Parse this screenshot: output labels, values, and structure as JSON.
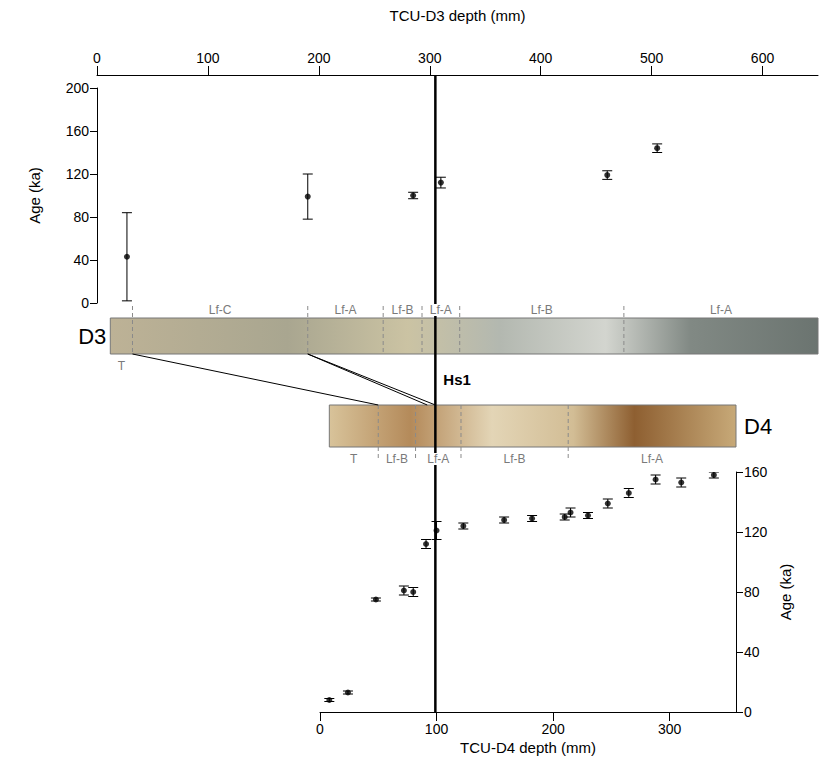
{
  "chart_data": [
    {
      "type": "scatter",
      "x_label": "TCU-D3 depth (mm)",
      "y_label": "Age (ka)",
      "xlim": [
        0,
        650
      ],
      "xticks": [
        0,
        100,
        200,
        300,
        400,
        500,
        600
      ],
      "ylim": [
        0,
        200
      ],
      "yticks": [
        0,
        40,
        80,
        120,
        160,
        200
      ],
      "x": [
        27,
        190,
        285,
        310,
        460,
        505
      ],
      "values": [
        43,
        99,
        100,
        112,
        119,
        144
      ],
      "errors": [
        41,
        21,
        3,
        5,
        4,
        4
      ],
      "color": "#000000",
      "marker": "circle"
    },
    {
      "type": "scatter",
      "x_label": "TCU-D4 depth (mm)",
      "y_label": "Age (ka)",
      "xlim": [
        0,
        357
      ],
      "xticks": [
        0,
        100,
        200,
        300
      ],
      "ylim": [
        0,
        160
      ],
      "yticks": [
        0,
        40,
        80,
        120,
        160
      ],
      "x": [
        8,
        24,
        48,
        72,
        80,
        91,
        100,
        123,
        158,
        182,
        210,
        215,
        230,
        247,
        265,
        288,
        310,
        338
      ],
      "values": [
        8,
        13,
        75,
        81,
        80,
        112,
        121,
        124,
        128,
        129,
        130,
        133,
        131,
        139,
        146,
        155,
        153,
        158
      ],
      "errors": [
        1,
        1,
        1,
        3,
        3,
        3,
        6,
        2,
        2,
        2,
        2,
        3,
        2,
        3,
        3,
        3,
        3,
        2
      ],
      "color": "#000000",
      "marker": "circle"
    }
  ],
  "cores": [
    {
      "label": "D3",
      "start": 12,
      "end": 650,
      "facies": [
        {
          "label": "T",
          "start": 0,
          "end": 32,
          "side": "below"
        },
        {
          "label": "Lf-C",
          "start": 32,
          "end": 190,
          "side": "above"
        },
        {
          "label": "Lf-A",
          "start": 190,
          "end": 258,
          "side": "above"
        },
        {
          "label": "Lf-B",
          "start": 258,
          "end": 293,
          "side": "above"
        },
        {
          "label": "Lf-A",
          "start": 293,
          "end": 327,
          "side": "above"
        },
        {
          "label": "Lf-B",
          "start": 327,
          "end": 475,
          "side": "above"
        },
        {
          "label": "Lf-A",
          "start": 475,
          "end": 650,
          "side": "above"
        }
      ]
    },
    {
      "label": "D4",
      "start": 8,
      "end": 357,
      "facies": [
        {
          "label": "T",
          "start": 8,
          "end": 50,
          "side": "below"
        },
        {
          "label": "Lf-B",
          "start": 50,
          "end": 82,
          "side": "below"
        },
        {
          "label": "Lf-A",
          "start": 82,
          "end": 121,
          "side": "below"
        },
        {
          "label": "Lf-B",
          "start": 121,
          "end": 213,
          "side": "below"
        },
        {
          "label": "Lf-A",
          "start": 213,
          "end": 357,
          "side": "below"
        }
      ]
    }
  ],
  "correlations": [
    {
      "d3": 32,
      "d4": 50
    },
    {
      "d3": 190,
      "d4": 92
    },
    {
      "d3": 190,
      "d4": 99
    }
  ],
  "horizon": {
    "label": "Hs1",
    "d4_depth": 99
  }
}
